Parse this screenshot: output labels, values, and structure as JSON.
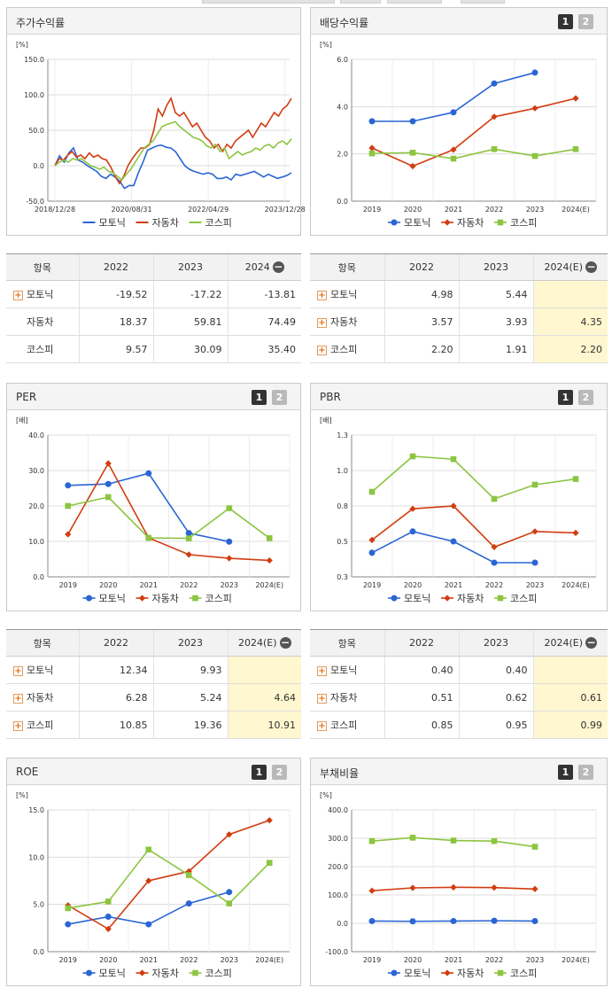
{
  "colors": {
    "motonik": "#2a65d4",
    "auto": "#d23c10",
    "kospi": "#8cc540"
  },
  "legend": [
    "모토닉",
    "자동차",
    "코스피"
  ],
  "pages": [
    "1",
    "2"
  ],
  "panels": {
    "stock": {
      "title": "주가수익률",
      "chart_data": {
        "type": "line",
        "unit": "[%]",
        "ylim": [
          -50,
          150
        ],
        "yticks": [
          "150.0",
          "100.0",
          "50.0",
          "0.0",
          "-50.0"
        ],
        "xticks": [
          "2018/12/28",
          "2020/08/31",
          "2022/04/29",
          "2023/12/28"
        ],
        "series": [
          {
            "name": "모토닉",
            "values": [
              0,
              14,
              5,
              18,
              25,
              8,
              5,
              0,
              -4,
              -8,
              -15,
              -18,
              -12,
              -16,
              -22,
              -32,
              -28,
              -28,
              -10,
              5,
              22,
              25,
              28,
              29,
              26,
              25,
              20,
              10,
              0,
              -5,
              -8,
              -10,
              -12,
              -10,
              -12,
              -18,
              -18,
              -16,
              -20,
              -12,
              -14,
              -12,
              -10,
              -8,
              -12,
              -16,
              -12,
              -15,
              -18,
              -16,
              -14,
              -10
            ]
          },
          {
            "name": "자동차",
            "values": [
              0,
              10,
              8,
              15,
              20,
              12,
              15,
              10,
              18,
              12,
              15,
              10,
              8,
              -2,
              -15,
              -25,
              -15,
              0,
              10,
              18,
              25,
              25,
              30,
              50,
              80,
              70,
              85,
              95,
              75,
              70,
              75,
              65,
              55,
              60,
              50,
              40,
              35,
              25,
              30,
              20,
              30,
              25,
              35,
              40,
              45,
              50,
              40,
              50,
              60,
              55,
              65,
              75,
              70,
              80,
              85,
              95
            ]
          },
          {
            "name": "코스피",
            "values": [
              0,
              5,
              8,
              5,
              10,
              8,
              10,
              5,
              0,
              -2,
              -5,
              -2,
              -8,
              -10,
              -15,
              -20,
              -12,
              -5,
              5,
              15,
              25,
              30,
              35,
              45,
              55,
              58,
              60,
              62,
              55,
              50,
              45,
              40,
              38,
              35,
              28,
              25,
              30,
              20,
              25,
              10,
              15,
              20,
              15,
              18,
              20,
              25,
              22,
              28,
              30,
              25,
              32,
              35,
              30,
              38
            ]
          }
        ]
      }
    },
    "dividend": {
      "title": "배당수익률",
      "chart_data": {
        "type": "line",
        "unit": "[%]",
        "ylim": [
          0,
          6
        ],
        "yticks": [
          "6.0",
          "4.0",
          "2.0",
          "0.0"
        ],
        "categories": [
          "2019",
          "2020",
          "2021",
          "2022",
          "2023",
          "2024(E)"
        ],
        "series": [
          {
            "name": "모토닉",
            "values": [
              3.38,
              3.38,
              3.76,
              4.98,
              5.44,
              null
            ]
          },
          {
            "name": "자동차",
            "values": [
              2.25,
              1.48,
              2.18,
              3.57,
              3.93,
              4.35
            ]
          },
          {
            "name": "코스피",
            "values": [
              2.02,
              2.05,
              1.8,
              2.2,
              1.91,
              2.2
            ]
          }
        ]
      }
    },
    "per": {
      "title": "PER",
      "chart_data": {
        "type": "line",
        "unit": "[배]",
        "ylim": [
          0,
          40
        ],
        "yticks": [
          "40.0",
          "30.0",
          "20.0",
          "10.0",
          "0.0"
        ],
        "categories": [
          "2019",
          "2020",
          "2021",
          "2022",
          "2023",
          "2024(E)"
        ],
        "series": [
          {
            "name": "모토닉",
            "values": [
              25.8,
              26.2,
              29.2,
              12.34,
              9.93,
              null
            ]
          },
          {
            "name": "자동차",
            "values": [
              12.0,
              32.0,
              11.0,
              6.28,
              5.24,
              4.64
            ]
          },
          {
            "name": "코스피",
            "values": [
              20.0,
              22.5,
              11.0,
              10.85,
              19.36,
              10.91
            ]
          }
        ]
      }
    },
    "pbr": {
      "title": "PBR",
      "chart_data": {
        "type": "line",
        "unit": "[배]",
        "ylim": [
          0.3,
          1.3
        ],
        "yticks": [
          "1.3",
          "1.0",
          "0.8",
          "0.5",
          "0.3"
        ],
        "categories": [
          "2019",
          "2020",
          "2021",
          "2022",
          "2023",
          "2024(E)"
        ],
        "series": [
          {
            "name": "모토닉",
            "values": [
              0.47,
              0.62,
              0.55,
              0.4,
              0.4,
              null
            ]
          },
          {
            "name": "자동차",
            "values": [
              0.56,
              0.78,
              0.8,
              0.51,
              0.62,
              0.61
            ]
          },
          {
            "name": "코스피",
            "values": [
              0.9,
              1.15,
              1.13,
              0.85,
              0.95,
              0.99
            ]
          }
        ]
      }
    },
    "roe": {
      "title": "ROE",
      "chart_data": {
        "type": "line",
        "unit": "[%]",
        "ylim": [
          0,
          15
        ],
        "yticks": [
          "15.0",
          "10.0",
          "5.0",
          "0.0"
        ],
        "categories": [
          "2019",
          "2020",
          "2021",
          "2022",
          "2023",
          "2024(E)"
        ],
        "series": [
          {
            "name": "모토닉",
            "values": [
              2.9,
              3.7,
              2.9,
              5.1,
              6.3,
              null
            ]
          },
          {
            "name": "자동차",
            "values": [
              4.9,
              2.4,
              7.5,
              8.5,
              12.4,
              13.9
            ]
          },
          {
            "name": "코스피",
            "values": [
              4.6,
              5.3,
              10.8,
              8.1,
              5.1,
              9.4
            ]
          }
        ]
      }
    },
    "debt": {
      "title": "부채비율",
      "chart_data": {
        "type": "line",
        "unit": "[%]",
        "ylim": [
          -100,
          400
        ],
        "yticks": [
          "400.0",
          "300.0",
          "200.0",
          "100.0",
          "0.0",
          "-100.0"
        ],
        "categories": [
          "2019",
          "2020",
          "2021",
          "2022",
          "2023",
          "2024(E)"
        ],
        "series": [
          {
            "name": "모토닉",
            "values": [
              8,
              7,
              8,
              9,
              8,
              null
            ]
          },
          {
            "name": "자동차",
            "values": [
              115,
              125,
              127,
              126,
              121,
              null
            ]
          },
          {
            "name": "코스피",
            "values": [
              290,
              302,
              292,
              290,
              270,
              null
            ]
          }
        ]
      }
    }
  },
  "tables": {
    "stock": {
      "header": [
        "항목",
        "2022",
        "2023",
        "2024"
      ],
      "rows": [
        {
          "label": "모토닉",
          "plus": true,
          "values": [
            "-19.52",
            "-17.22",
            "-13.81"
          ]
        },
        {
          "label": "자동차",
          "plus": false,
          "values": [
            "18.37",
            "59.81",
            "74.49"
          ]
        },
        {
          "label": "코스피",
          "plus": false,
          "values": [
            "9.57",
            "30.09",
            "35.40"
          ]
        }
      ]
    },
    "dividend": {
      "header": [
        "항목",
        "2022",
        "2023",
        "2024(E)"
      ],
      "rows": [
        {
          "label": "모토닉",
          "plus": true,
          "values": [
            "4.98",
            "5.44",
            ""
          ]
        },
        {
          "label": "자동차",
          "plus": true,
          "values": [
            "3.57",
            "3.93",
            "4.35"
          ]
        },
        {
          "label": "코스피",
          "plus": true,
          "values": [
            "2.20",
            "1.91",
            "2.20"
          ]
        }
      ]
    },
    "per": {
      "header": [
        "항목",
        "2022",
        "2023",
        "2024(E)"
      ],
      "rows": [
        {
          "label": "모토닉",
          "plus": true,
          "values": [
            "12.34",
            "9.93",
            ""
          ]
        },
        {
          "label": "자동차",
          "plus": true,
          "values": [
            "6.28",
            "5.24",
            "4.64"
          ]
        },
        {
          "label": "코스피",
          "plus": true,
          "values": [
            "10.85",
            "19.36",
            "10.91"
          ]
        }
      ]
    },
    "pbr": {
      "header": [
        "항목",
        "2022",
        "2023",
        "2024(E)"
      ],
      "rows": [
        {
          "label": "모토닉",
          "plus": true,
          "values": [
            "0.40",
            "0.40",
            ""
          ]
        },
        {
          "label": "자동차",
          "plus": true,
          "values": [
            "0.51",
            "0.62",
            "0.61"
          ]
        },
        {
          "label": "코스피",
          "plus": true,
          "values": [
            "0.85",
            "0.95",
            "0.99"
          ]
        }
      ]
    }
  }
}
